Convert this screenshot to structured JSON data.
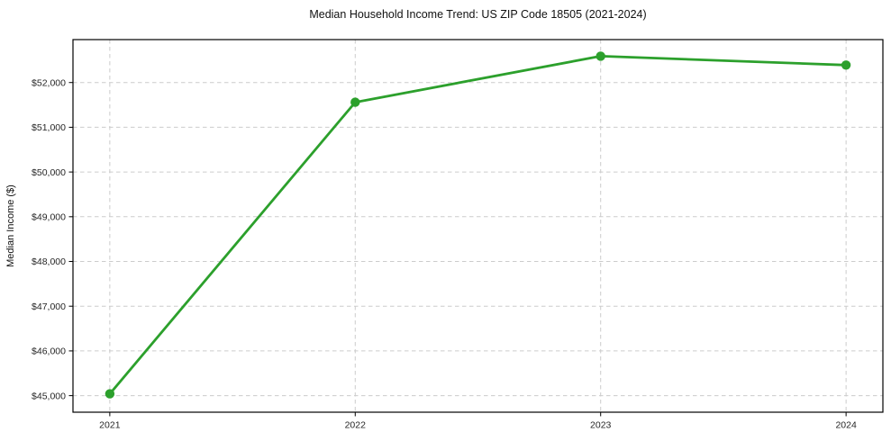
{
  "chart_data": {
    "type": "line",
    "title": "Median Household Income Trend: US ZIP Code 18505 (2021-2024)",
    "xlabel": "",
    "ylabel": "Median Income ($)",
    "x": [
      2021,
      2022,
      2023,
      2024
    ],
    "series": [
      {
        "name": "Median Household Income",
        "values": [
          45040,
          51560,
          52590,
          52390
        ]
      }
    ],
    "xlim": [
      2020.85,
      2024.15
    ],
    "ylim": [
      44630,
      52960
    ],
    "xticks": [
      2021,
      2022,
      2023,
      2024
    ],
    "xtick_labels": [
      "2021",
      "2022",
      "2023",
      "2024"
    ],
    "yticks": [
      45000,
      46000,
      47000,
      48000,
      49000,
      50000,
      51000,
      52000
    ],
    "ytick_labels": [
      "$45,000",
      "$46,000",
      "$47,000",
      "$48,000",
      "$49,000",
      "$50,000",
      "$51,000",
      "$52,000"
    ],
    "grid": true,
    "grid_style": "dashed",
    "legend_position": "none",
    "line_color": "#2ca02c",
    "marker": "circle",
    "marker_radius": 5.2,
    "grid_color": "#cccccc",
    "frame_color": "#000000",
    "background_color": "#ffffff",
    "text_color": "#262626"
  }
}
